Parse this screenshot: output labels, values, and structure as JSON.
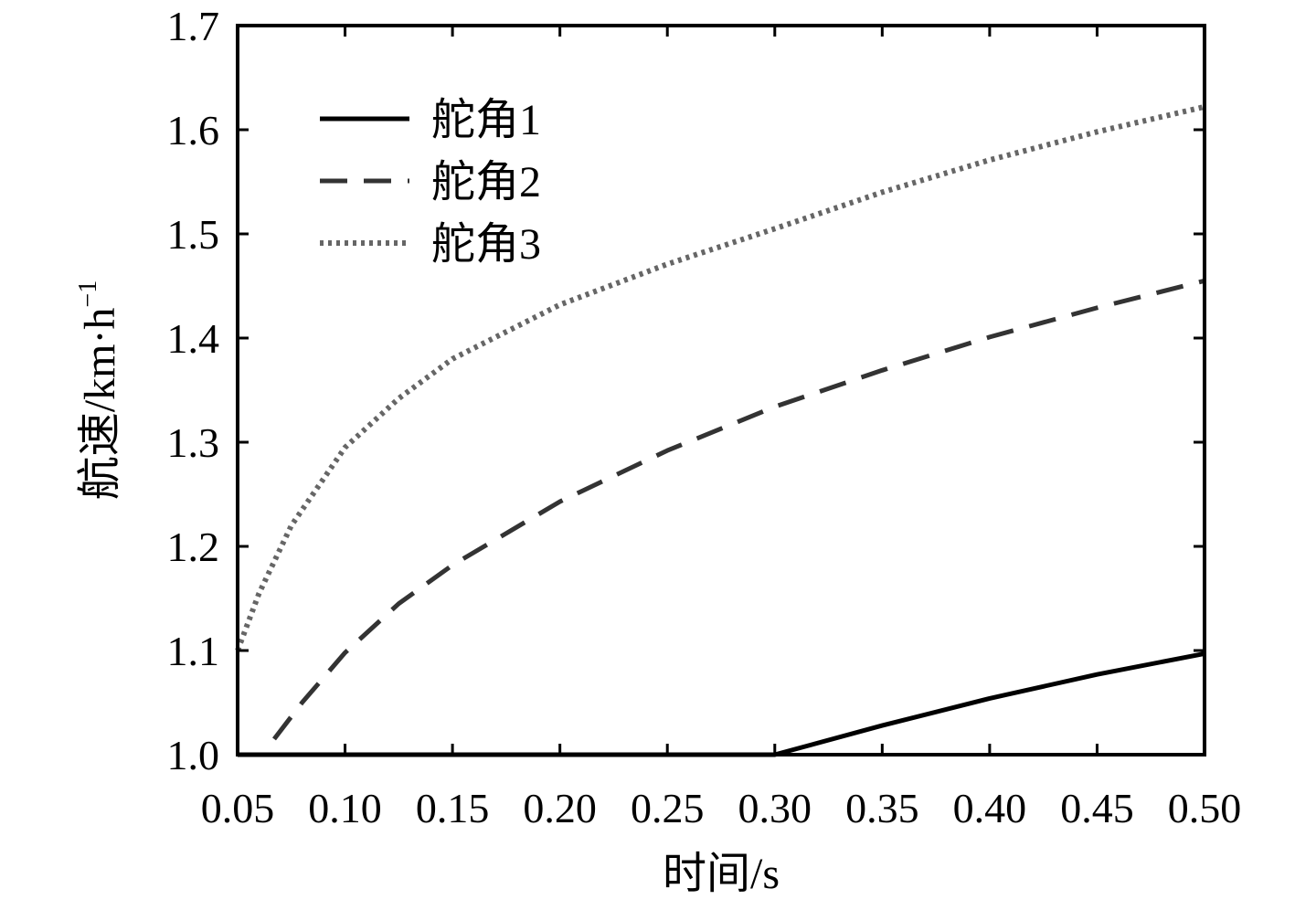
{
  "chart_data": {
    "type": "line",
    "title": "",
    "xlabel": "时间/s",
    "ylabel": "航速/km·h",
    "ylabel_superscript": "−1",
    "xlim": [
      0.05,
      0.5
    ],
    "ylim": [
      1.0,
      1.7
    ],
    "xticks": [
      "0.05",
      "0.10",
      "0.15",
      "0.20",
      "0.25",
      "0.30",
      "0.35",
      "0.40",
      "0.45",
      "0.50"
    ],
    "yticks": [
      "1.0",
      "1.1",
      "1.2",
      "1.3",
      "1.4",
      "1.5",
      "1.6",
      "1.7"
    ],
    "grid": false,
    "legend_position": "top-left",
    "series": [
      {
        "name": "舵角1",
        "style": "solid",
        "color": "#000000",
        "x": [
          0.05,
          0.06,
          0.3,
          0.35,
          0.4,
          0.45,
          0.5
        ],
        "y": [
          1.0,
          1.0,
          1.0,
          1.028,
          1.054,
          1.077,
          1.097
        ]
      },
      {
        "name": "舵角2",
        "style": "dashed",
        "color": "#333333",
        "x": [
          0.067,
          0.08,
          0.1,
          0.125,
          0.15,
          0.2,
          0.25,
          0.3,
          0.35,
          0.4,
          0.45,
          0.5
        ],
        "y": [
          1.015,
          1.05,
          1.098,
          1.145,
          1.182,
          1.243,
          1.292,
          1.334,
          1.369,
          1.401,
          1.429,
          1.455
        ]
      },
      {
        "name": "舵角3",
        "style": "dotted",
        "color": "#666666",
        "x": [
          0.05,
          0.06,
          0.075,
          0.1,
          0.125,
          0.15,
          0.2,
          0.25,
          0.3,
          0.35,
          0.4,
          0.45,
          0.5
        ],
        "y": [
          1.1,
          1.155,
          1.22,
          1.295,
          1.342,
          1.38,
          1.432,
          1.471,
          1.505,
          1.54,
          1.571,
          1.598,
          1.622
        ]
      }
    ]
  }
}
